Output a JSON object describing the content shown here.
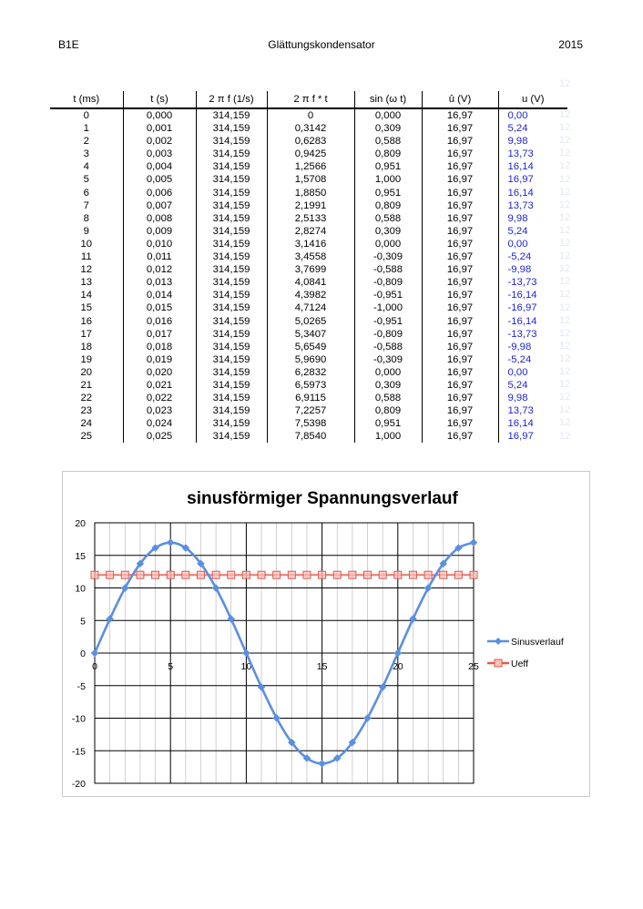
{
  "header": {
    "left": "B1E",
    "center": "Glättungskondensator",
    "right": "2015"
  },
  "ghost_value": "12",
  "table": {
    "columns": [
      "t (ms)",
      "t (s)",
      "2 π f (1/s)",
      "2 π f * t",
      "sin (ω t)",
      "û (V)",
      "u (V)"
    ],
    "rows": [
      [
        "0",
        "0,000",
        "314,159",
        "0",
        "0,000",
        "16,97",
        "0,00"
      ],
      [
        "1",
        "0,001",
        "314,159",
        "0,3142",
        "0,309",
        "16,97",
        "5,24"
      ],
      [
        "2",
        "0,002",
        "314,159",
        "0,6283",
        "0,588",
        "16,97",
        "9,98"
      ],
      [
        "3",
        "0,003",
        "314,159",
        "0,9425",
        "0,809",
        "16,97",
        "13,73"
      ],
      [
        "4",
        "0,004",
        "314,159",
        "1,2566",
        "0,951",
        "16,97",
        "16,14"
      ],
      [
        "5",
        "0,005",
        "314,159",
        "1,5708",
        "1,000",
        "16,97",
        "16,97"
      ],
      [
        "6",
        "0,006",
        "314,159",
        "1,8850",
        "0,951",
        "16,97",
        "16,14"
      ],
      [
        "7",
        "0,007",
        "314,159",
        "2,1991",
        "0,809",
        "16,97",
        "13,73"
      ],
      [
        "8",
        "0,008",
        "314,159",
        "2,5133",
        "0,588",
        "16,97",
        "9,98"
      ],
      [
        "9",
        "0,009",
        "314,159",
        "2,8274",
        "0,309",
        "16,97",
        "5,24"
      ],
      [
        "10",
        "0,010",
        "314,159",
        "3,1416",
        "0,000",
        "16,97",
        "0,00"
      ],
      [
        "11",
        "0,011",
        "314,159",
        "3,4558",
        "-0,309",
        "16,97",
        "-5,24"
      ],
      [
        "12",
        "0,012",
        "314,159",
        "3,7699",
        "-0,588",
        "16,97",
        "-9,98"
      ],
      [
        "13",
        "0,013",
        "314,159",
        "4,0841",
        "-0,809",
        "16,97",
        "-13,73"
      ],
      [
        "14",
        "0,014",
        "314,159",
        "4,3982",
        "-0,951",
        "16,97",
        "-16,14"
      ],
      [
        "15",
        "0,015",
        "314,159",
        "4,7124",
        "-1,000",
        "16,97",
        "-16,97"
      ],
      [
        "16",
        "0,016",
        "314,159",
        "5,0265",
        "-0,951",
        "16,97",
        "-16,14"
      ],
      [
        "17",
        "0,017",
        "314,159",
        "5,3407",
        "-0,809",
        "16,97",
        "-13,73"
      ],
      [
        "18",
        "0,018",
        "314,159",
        "5,6549",
        "-0,588",
        "16,97",
        "-9,98"
      ],
      [
        "19",
        "0,019",
        "314,159",
        "5,9690",
        "-0,309",
        "16,97",
        "-5,24"
      ],
      [
        "20",
        "0,020",
        "314,159",
        "6,2832",
        "0,000",
        "16,97",
        "0,00"
      ],
      [
        "21",
        "0,021",
        "314,159",
        "6,5973",
        "0,309",
        "16,97",
        "5,24"
      ],
      [
        "22",
        "0,022",
        "314,159",
        "6,9115",
        "0,588",
        "16,97",
        "9,98"
      ],
      [
        "23",
        "0,023",
        "314,159",
        "7,2257",
        "0,809",
        "16,97",
        "13,73"
      ],
      [
        "24",
        "0,024",
        "314,159",
        "7,5398",
        "0,951",
        "16,97",
        "16,14"
      ],
      [
        "25",
        "0,025",
        "314,159",
        "7,8540",
        "1,000",
        "16,97",
        "16,97"
      ]
    ]
  },
  "chart_data": {
    "type": "line",
    "title": "sinusförmiger Spannungsverlauf",
    "x": [
      0,
      1,
      2,
      3,
      4,
      5,
      6,
      7,
      8,
      9,
      10,
      11,
      12,
      13,
      14,
      15,
      16,
      17,
      18,
      19,
      20,
      21,
      22,
      23,
      24,
      25
    ],
    "series": [
      {
        "name": "Sinusverlauf",
        "color": "#5b8fe0",
        "values": [
          0,
          5.24,
          9.98,
          13.73,
          16.14,
          16.97,
          16.14,
          13.73,
          9.98,
          5.24,
          0,
          -5.24,
          -9.98,
          -13.73,
          -16.14,
          -16.97,
          -16.14,
          -13.73,
          -9.98,
          -5.24,
          0,
          5.24,
          9.98,
          13.73,
          16.14,
          16.97
        ]
      },
      {
        "name": "Ueff",
        "color": "#e05a4e",
        "values": [
          12,
          12,
          12,
          12,
          12,
          12,
          12,
          12,
          12,
          12,
          12,
          12,
          12,
          12,
          12,
          12,
          12,
          12,
          12,
          12,
          12,
          12,
          12,
          12,
          12,
          12
        ]
      }
    ],
    "xlim": [
      0,
      25
    ],
    "ylim": [
      -20,
      20
    ],
    "xticks": [
      0,
      5,
      10,
      15,
      20,
      25
    ],
    "yticks": [
      20,
      15,
      10,
      5,
      0,
      -5,
      -10,
      -15,
      -20
    ],
    "grid": true,
    "legend": "right"
  }
}
